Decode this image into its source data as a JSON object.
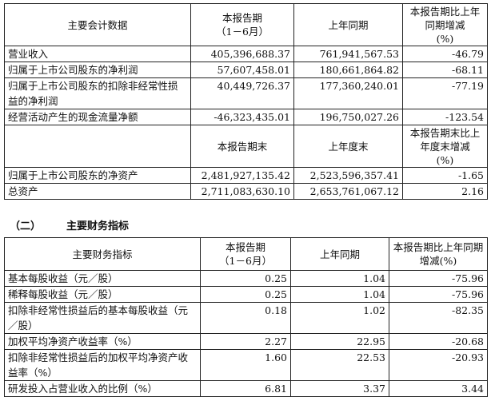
{
  "table1": {
    "header": [
      "主要会计数据",
      "本报告期\n（1－6月）",
      "上年同期",
      "本报告期比上年同期增减\n(%)"
    ],
    "rows": [
      [
        "营业收入",
        "405,396,688.37",
        "761,941,567.53",
        "-46.79"
      ],
      [
        "归属于上市公司股东的净利润",
        "57,607,458.01",
        "180,661,864.82",
        "-68.11"
      ],
      [
        "归属于上市公司股东的扣除非经常性损益的净利润",
        "40,449,726.37",
        "177,360,240.01",
        "-77.19"
      ],
      [
        "经营活动产生的现金流量净额",
        "-46,323,435.01",
        "196,750,027.26",
        "-123.54"
      ]
    ],
    "header2": [
      "",
      "本报告期末",
      "上年度末",
      "本报告期末比上年度末增减\n(%)"
    ],
    "rows2": [
      [
        "归属于上市公司股东的净资产",
        "2,481,927,135.42",
        "2,523,596,357.41",
        "-1.65"
      ],
      [
        "总资产",
        "2,711,083,630.10",
        "2,653,761,067.12",
        "2.16"
      ]
    ]
  },
  "section": {
    "number": "（二）",
    "title": "主要财务指标"
  },
  "table2": {
    "header": [
      "主要财务指标",
      "本报告期\n（1－6月）",
      "上年同期",
      "本报告期比上年同期增减(%)"
    ],
    "rows": [
      [
        "基本每股收益（元／股）",
        "0.25",
        "1.04",
        "-75.96"
      ],
      [
        "稀释每股收益（元／股）",
        "0.25",
        "1.04",
        "-75.96"
      ],
      [
        "扣除非经常性损益后的基本每股收益（元／股）",
        "0.18",
        "1.02",
        "-82.35"
      ],
      [
        "加权平均净资产收益率（%）",
        "2.27",
        "22.95",
        "-20.68"
      ],
      [
        "扣除非经常性损益后的加权平均净资产收益率（%）",
        "1.60",
        "22.53",
        "-20.93"
      ],
      [
        "研发投入占营业收入的比例（%）",
        "6.81",
        "3.37",
        "3.44"
      ]
    ]
  }
}
